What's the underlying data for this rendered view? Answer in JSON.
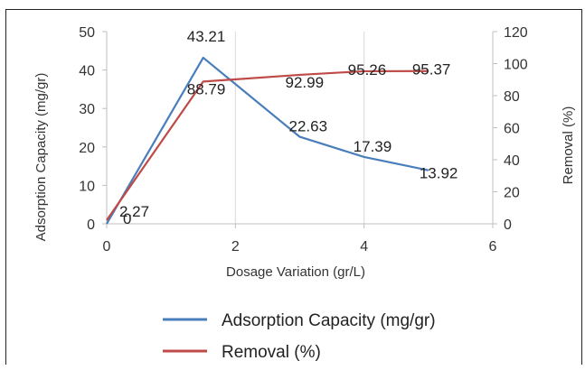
{
  "chart_data": {
    "type": "line",
    "title": "",
    "xlabel": "Dosage Variation (gr/L)",
    "ylabel": "Adsorption Capacity (mg/gr)",
    "y2label": "Removal (%)",
    "xlim": [
      0,
      6
    ],
    "ylim": [
      0,
      50
    ],
    "y2lim": [
      0,
      120
    ],
    "xticks": [
      "0",
      "2",
      "4",
      "6"
    ],
    "yticks": [
      "0",
      "10",
      "20",
      "30",
      "40",
      "50"
    ],
    "y2ticks": [
      "0",
      "20",
      "40",
      "60",
      "80",
      "100",
      "120"
    ],
    "grid": "vertical",
    "legend": "bottom",
    "series": [
      {
        "name": "Adsorption Capacity (mg/gr)",
        "axis": "left",
        "color": "#4a7ebb",
        "x": [
          0,
          1.5,
          3,
          4,
          5
        ],
        "y": [
          0,
          43.21,
          22.63,
          17.39,
          13.92
        ],
        "labels": [
          "0",
          "43.21",
          "22.63",
          "17.39",
          "13.92"
        ]
      },
      {
        "name": "Removal (%)",
        "axis": "right",
        "color": "#be4b48",
        "x": [
          0,
          1.5,
          3,
          4,
          5
        ],
        "y": [
          2.27,
          88.79,
          92.99,
          95.26,
          95.37
        ],
        "labels": [
          "2.27",
          "88.79",
          "92.99",
          "95.26",
          "95.37"
        ]
      }
    ]
  }
}
